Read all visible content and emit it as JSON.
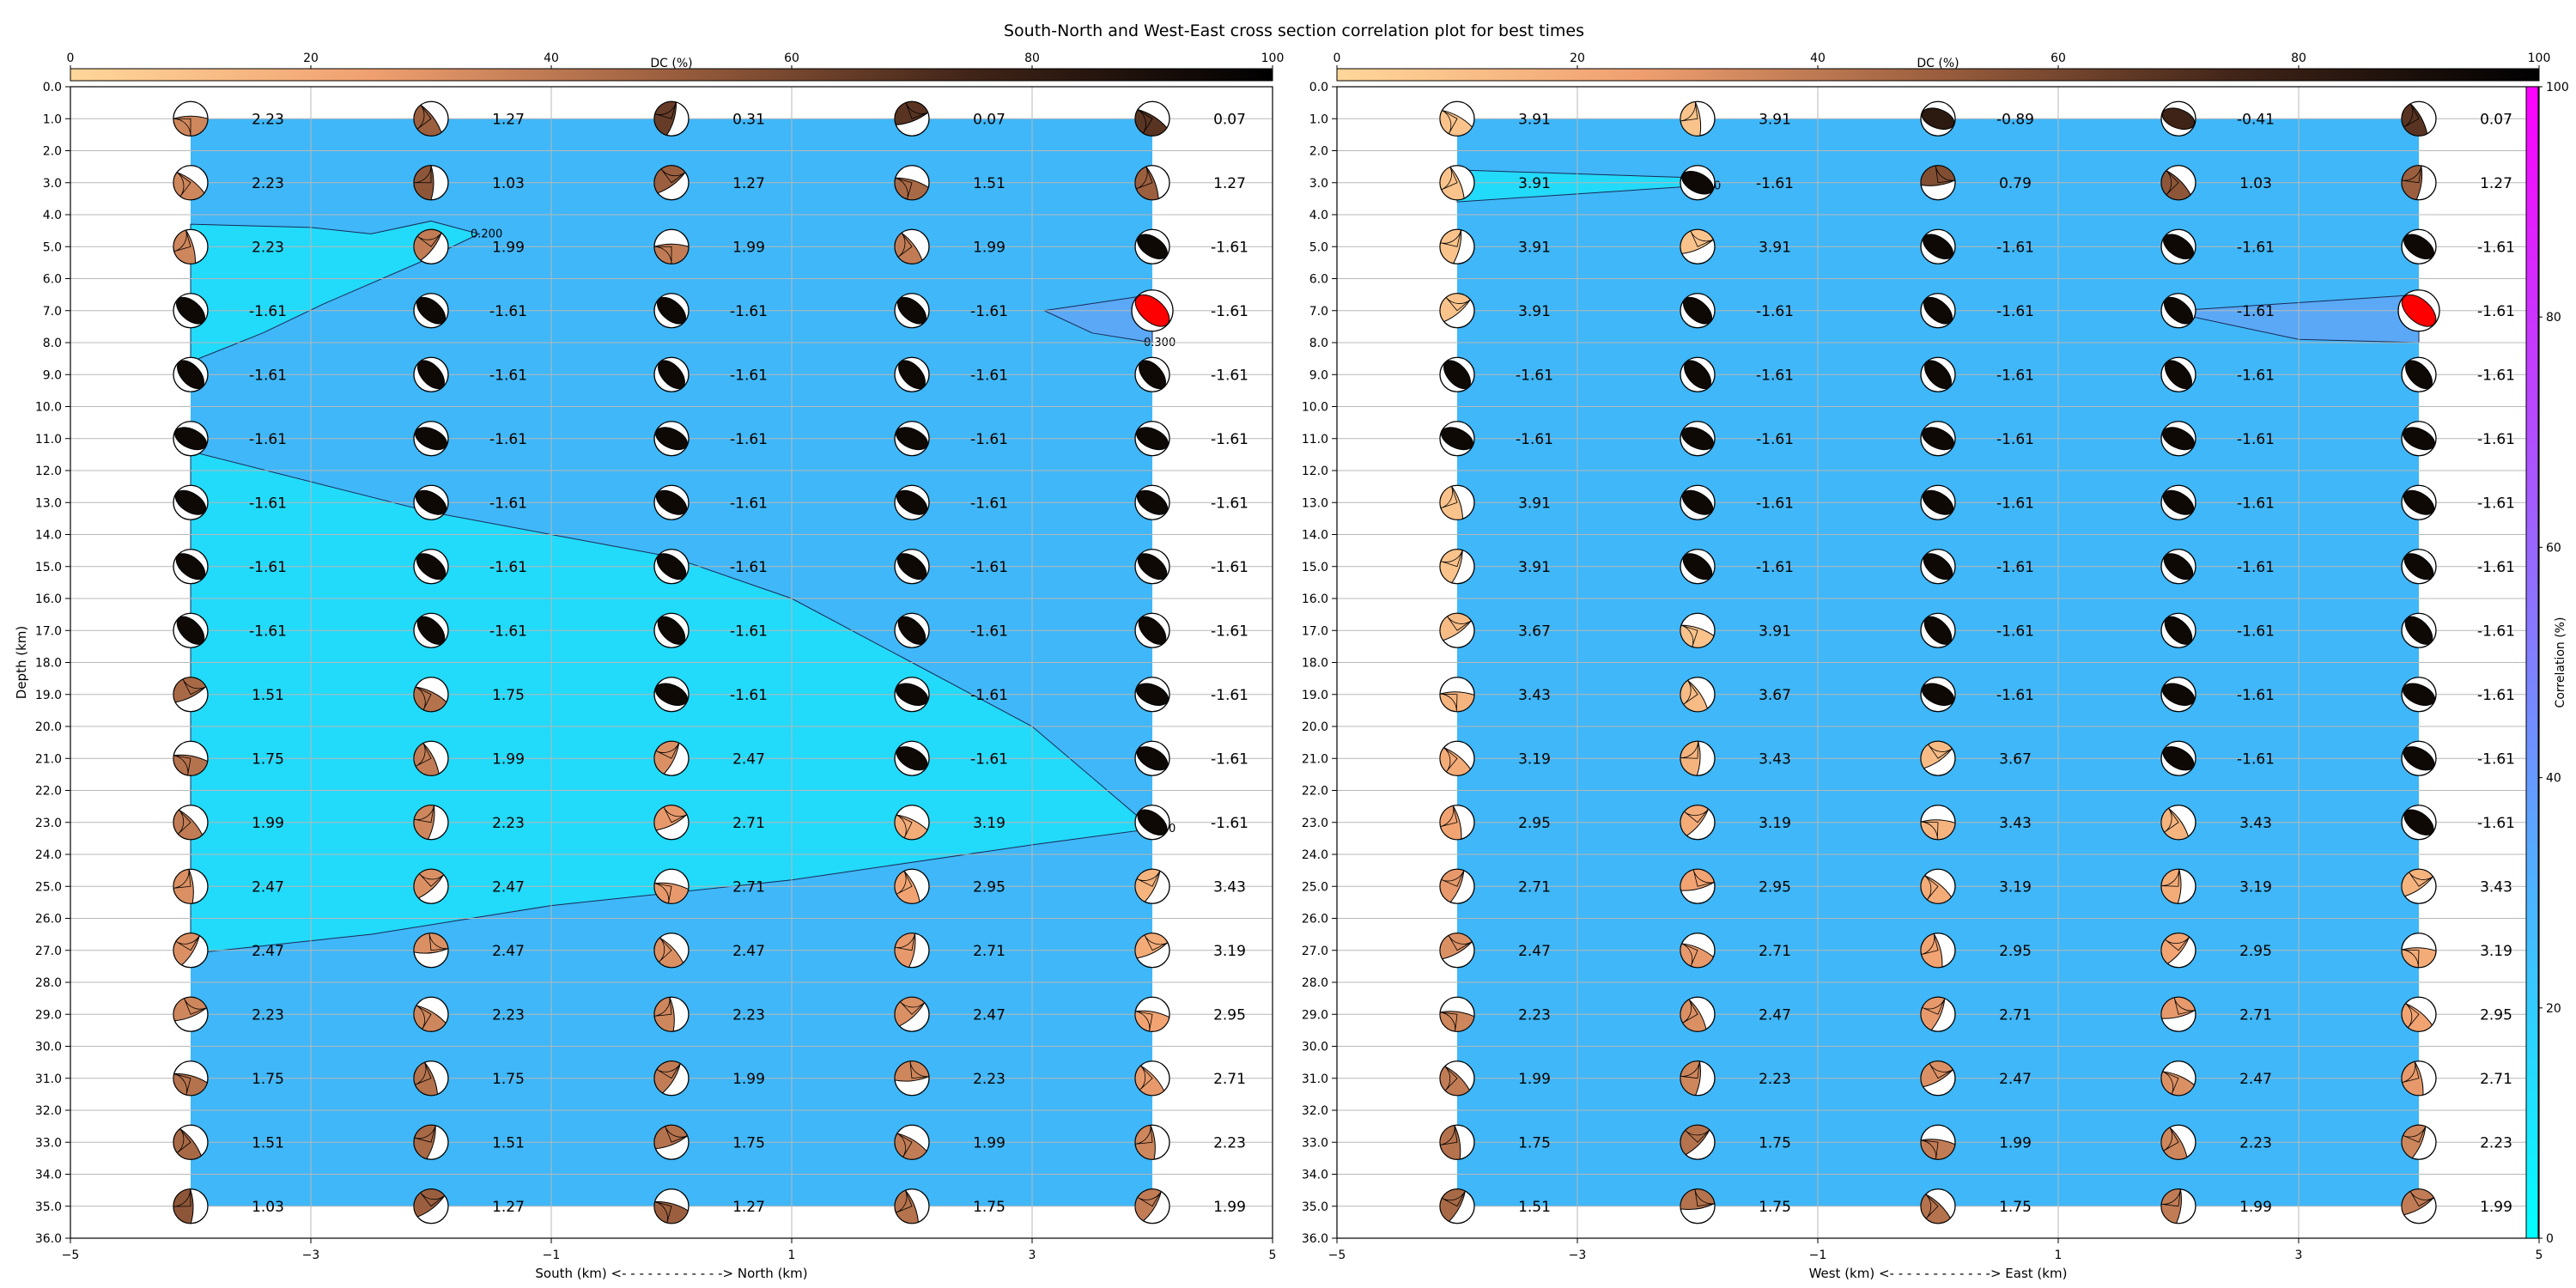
{
  "figure": {
    "title": "South-North and West-East cross section correlation plot for best times"
  },
  "colors": {
    "background_field": "#3fb7f8",
    "contour_fill_low": "#22dafa",
    "contour_fill_high": "#5aa8f6",
    "best_beachball": "#ff0000",
    "correlation_cmap": [
      "#00ffff",
      "#ff00ff"
    ],
    "dc_cmap": [
      "#ffd79a",
      "#f0a070",
      "#9a5e3e",
      "#402418",
      "#000000"
    ]
  },
  "colorbars": {
    "dc": {
      "label": "DC (%)",
      "ticks": [
        "0",
        "20",
        "40",
        "60",
        "80",
        "100"
      ]
    },
    "correlation": {
      "label": "Correlation (%)",
      "ticks": [
        "0",
        "20",
        "40",
        "60",
        "80",
        "100"
      ]
    }
  },
  "chart_data": [
    {
      "type": "scatter",
      "name": "south-north",
      "xlabel": "South (km) <- - - - - - - - - - - -> North (km)",
      "ylabel": "Depth (km)",
      "xlim": [
        -5,
        5
      ],
      "ylim": [
        36,
        0
      ],
      "xticks": [
        "−5",
        "−3",
        "−1",
        "1",
        "3",
        "5"
      ],
      "yticks": [
        "0.0",
        "1.0",
        "2.0",
        "3.0",
        "4.0",
        "5.0",
        "6.0",
        "7.0",
        "8.0",
        "9.0",
        "10.0",
        "11.0",
        "12.0",
        "13.0",
        "14.0",
        "15.0",
        "16.0",
        "17.0",
        "18.0",
        "19.0",
        "20.0",
        "21.0",
        "22.0",
        "23.0",
        "24.0",
        "25.0",
        "26.0",
        "27.0",
        "28.0",
        "29.0",
        "30.0",
        "31.0",
        "32.0",
        "33.0",
        "34.0",
        "35.0",
        "36.0"
      ],
      "grid": true,
      "x": [
        -4,
        -2,
        0,
        2,
        4
      ],
      "depths": [
        1,
        3,
        5,
        7,
        9,
        11,
        13,
        15,
        17,
        19,
        21,
        23,
        25,
        27,
        29,
        31,
        33,
        35
      ],
      "values": [
        [
          "2.23",
          "1.27",
          "0.31",
          "0.07",
          "0.07"
        ],
        [
          "2.23",
          "1.03",
          "1.27",
          "1.51",
          "1.27"
        ],
        [
          "2.23",
          "1.99",
          "1.99",
          "1.99",
          "-1.61"
        ],
        [
          "-1.61",
          "-1.61",
          "-1.61",
          "-1.61",
          "-1.61"
        ],
        [
          "-1.61",
          "-1.61",
          "-1.61",
          "-1.61",
          "-1.61"
        ],
        [
          "-1.61",
          "-1.61",
          "-1.61",
          "-1.61",
          "-1.61"
        ],
        [
          "-1.61",
          "-1.61",
          "-1.61",
          "-1.61",
          "-1.61"
        ],
        [
          "-1.61",
          "-1.61",
          "-1.61",
          "-1.61",
          "-1.61"
        ],
        [
          "-1.61",
          "-1.61",
          "-1.61",
          "-1.61",
          "-1.61"
        ],
        [
          "1.51",
          "1.75",
          "-1.61",
          "-1.61",
          "-1.61"
        ],
        [
          "1.75",
          "1.99",
          "2.47",
          "-1.61",
          "-1.61"
        ],
        [
          "1.99",
          "2.23",
          "2.71",
          "3.19",
          "-1.61"
        ],
        [
          "2.47",
          "2.47",
          "2.71",
          "2.95",
          "3.43"
        ],
        [
          "2.47",
          "2.47",
          "2.47",
          "2.71",
          "3.19"
        ],
        [
          "2.23",
          "2.23",
          "2.23",
          "2.47",
          "2.95"
        ],
        [
          "1.75",
          "1.75",
          "1.99",
          "2.23",
          "2.71"
        ],
        [
          "1.51",
          "1.51",
          "1.75",
          "1.99",
          "2.23"
        ],
        [
          "1.03",
          "1.27",
          "1.27",
          "1.75",
          "1.99"
        ]
      ],
      "best": {
        "x": 4,
        "depth": 7
      },
      "contours": [
        {
          "label": "0.200",
          "points": [
            [
              -4,
              4.3
            ],
            [
              -3,
              4.4
            ],
            [
              -2.5,
              4.6
            ],
            [
              -2,
              4.2
            ],
            [
              -1.6,
              4.6
            ],
            [
              -2.1,
              5.5
            ],
            [
              -2.9,
              6.8
            ],
            [
              -3.4,
              7.7
            ],
            [
              -4,
              8.6
            ]
          ]
        },
        {
          "label": "0.200",
          "points": [
            [
              -4,
              11.4
            ],
            [
              -2,
              13.3
            ],
            [
              0,
              14.7
            ],
            [
              1,
              16
            ],
            [
              2,
              18
            ],
            [
              3,
              20
            ],
            [
              4,
              23.2
            ],
            [
              3,
              23.7
            ],
            [
              1,
              24.8
            ],
            [
              -1,
              25.6
            ],
            [
              -2.5,
              26.5
            ],
            [
              -4,
              27.1
            ]
          ]
        },
        {
          "label": "0.300",
          "points": [
            [
              3.1,
              7
            ],
            [
              4,
              6.5
            ],
            [
              4,
              8
            ],
            [
              3.5,
              7.7
            ]
          ]
        }
      ]
    },
    {
      "type": "scatter",
      "name": "west-east",
      "xlabel": "West (km) <- - - - - - - - - - - -> East (km)",
      "ylabel": "",
      "xlim": [
        -5,
        5
      ],
      "ylim": [
        36,
        0
      ],
      "xticks": [
        "−5",
        "−3",
        "−1",
        "1",
        "3",
        "5"
      ],
      "yticks": [
        "0.0",
        "1.0",
        "2.0",
        "3.0",
        "4.0",
        "5.0",
        "6.0",
        "7.0",
        "8.0",
        "9.0",
        "10.0",
        "11.0",
        "12.0",
        "13.0",
        "14.0",
        "15.0",
        "16.0",
        "17.0",
        "18.0",
        "19.0",
        "20.0",
        "21.0",
        "22.0",
        "23.0",
        "24.0",
        "25.0",
        "26.0",
        "27.0",
        "28.0",
        "29.0",
        "30.0",
        "31.0",
        "32.0",
        "33.0",
        "34.0",
        "35.0",
        "36.0"
      ],
      "grid": true,
      "x": [
        -4,
        -2,
        0,
        2,
        4
      ],
      "depths": [
        1,
        3,
        5,
        7,
        9,
        11,
        13,
        15,
        17,
        19,
        21,
        23,
        25,
        27,
        29,
        31,
        33,
        35
      ],
      "values": [
        [
          "3.91",
          "3.91",
          "-0.89",
          "-0.41",
          "0.07"
        ],
        [
          "3.91",
          "-1.61",
          "0.79",
          "1.03",
          "1.27"
        ],
        [
          "3.91",
          "3.91",
          "-1.61",
          "-1.61",
          "-1.61"
        ],
        [
          "3.91",
          "-1.61",
          "-1.61",
          "-1.61",
          "-1.61"
        ],
        [
          "-1.61",
          "-1.61",
          "-1.61",
          "-1.61",
          "-1.61"
        ],
        [
          "-1.61",
          "-1.61",
          "-1.61",
          "-1.61",
          "-1.61"
        ],
        [
          "3.91",
          "-1.61",
          "-1.61",
          "-1.61",
          "-1.61"
        ],
        [
          "3.91",
          "-1.61",
          "-1.61",
          "-1.61",
          "-1.61"
        ],
        [
          "3.67",
          "3.91",
          "-1.61",
          "-1.61",
          "-1.61"
        ],
        [
          "3.43",
          "3.67",
          "-1.61",
          "-1.61",
          "-1.61"
        ],
        [
          "3.19",
          "3.43",
          "3.67",
          "-1.61",
          "-1.61"
        ],
        [
          "2.95",
          "3.19",
          "3.43",
          "3.43",
          "-1.61"
        ],
        [
          "2.71",
          "2.95",
          "3.19",
          "3.19",
          "3.43"
        ],
        [
          "2.47",
          "2.71",
          "2.95",
          "2.95",
          "3.19"
        ],
        [
          "2.23",
          "2.47",
          "2.71",
          "2.71",
          "2.95"
        ],
        [
          "1.99",
          "2.23",
          "2.47",
          "2.47",
          "2.71"
        ],
        [
          "1.75",
          "1.75",
          "1.99",
          "2.23",
          "2.23"
        ],
        [
          "1.51",
          "1.75",
          "1.75",
          "1.99",
          "1.99"
        ]
      ],
      "best": {
        "x": 4,
        "depth": 7
      },
      "contours": [
        {
          "label": "0.200",
          "points": [
            [
              -4,
              2.6
            ],
            [
              -2,
              2.85
            ],
            [
              -2,
              3.1
            ],
            [
              -4,
              3.6
            ]
          ]
        },
        {
          "label": "",
          "points": [
            [
              2,
              7
            ],
            [
              4,
              6.5
            ],
            [
              4,
              8
            ],
            [
              3,
              7.9
            ],
            [
              2,
              7.1
            ]
          ]
        }
      ]
    }
  ]
}
